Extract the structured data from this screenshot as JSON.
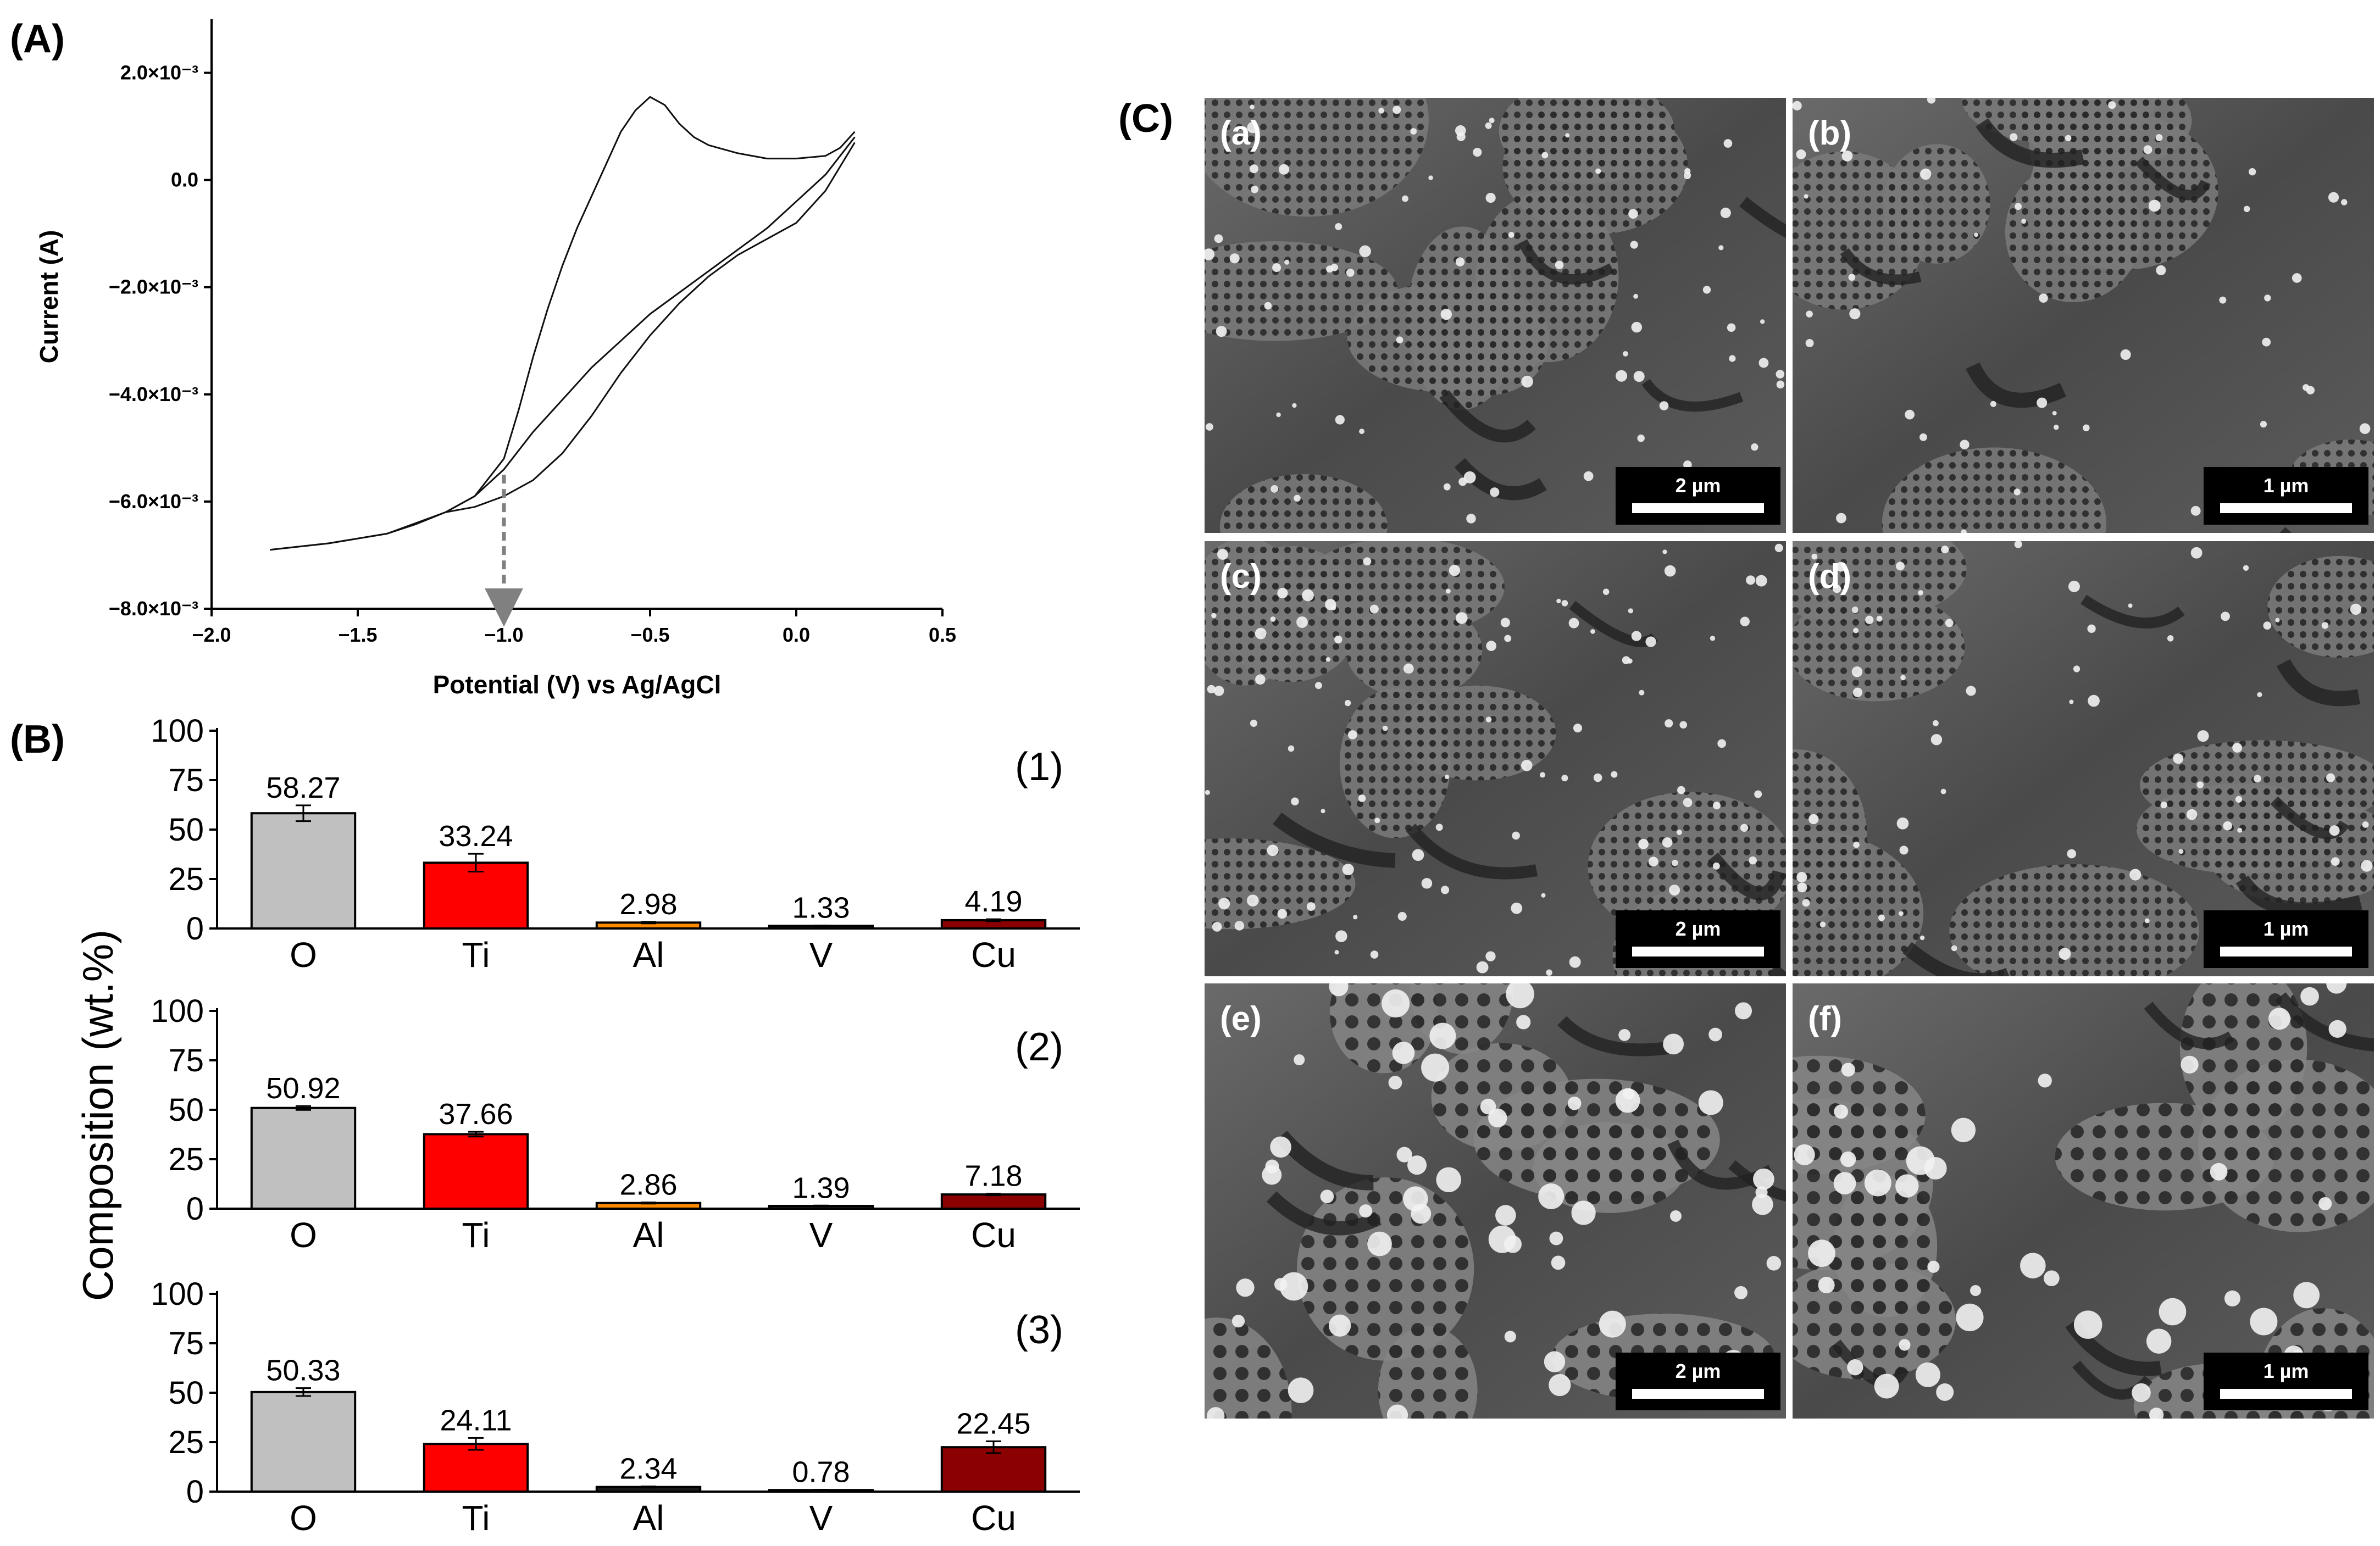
{
  "panels": {
    "a": "(A)",
    "b": "(B)",
    "c": "(C)"
  },
  "chart_data": [
    {
      "type": "line",
      "panel": "(A)",
      "xlabel": "Potential (V) vs Ag/AgCl",
      "ylabel": "Current (A)",
      "xlim": [
        -2.0,
        0.5
      ],
      "ylim": [
        -0.008,
        0.003
      ],
      "x_ticks": [
        "−2.0",
        "−1.5",
        "−1.0",
        "−0.5",
        "0.0",
        "0.5"
      ],
      "x_tick_values": [
        -2.0,
        -1.5,
        -1.0,
        -0.5,
        0.0,
        0.5
      ],
      "y_ticks": [
        "−8.0×10⁻³",
        "−6.0×10⁻³",
        "−4.0×10⁻³",
        "−2.0×10⁻³",
        "0.0",
        "2.0×10⁻³"
      ],
      "y_tick_values": [
        -0.008,
        -0.006,
        -0.004,
        -0.002,
        0.0,
        0.002
      ],
      "annotation": {
        "type": "dashed-arrow",
        "x": -1.0,
        "y_from": -0.0055,
        "y_to": -0.0081
      },
      "series": [
        {
          "x": [
            -1.8,
            -1.6,
            -1.4,
            -1.3,
            -1.2,
            -1.1,
            -1.0,
            -0.95,
            -0.9,
            -0.85,
            -0.8,
            -0.75,
            -0.7,
            -0.65,
            -0.6,
            -0.55,
            -0.5,
            -0.45,
            -0.4,
            -0.35,
            -0.3,
            -0.2,
            -0.1,
            0.0,
            0.1,
            0.15,
            0.2
          ],
          "y": [
            -0.0069,
            -0.00678,
            -0.0066,
            -0.00642,
            -0.0062,
            -0.0059,
            -0.0052,
            -0.0043,
            -0.0033,
            -0.0024,
            -0.0016,
            -0.0009,
            -0.0003,
            0.0003,
            0.0009,
            0.0013,
            0.00155,
            0.0014,
            0.00105,
            0.0008,
            0.00065,
            0.0005,
            0.0004,
            0.0004,
            0.00045,
            0.0006,
            0.0009
          ]
        },
        {
          "x": [
            0.2,
            0.1,
            0.0,
            -0.1,
            -0.2,
            -0.3,
            -0.4,
            -0.5,
            -0.6,
            -0.7,
            -0.8,
            -0.9,
            -1.0,
            -1.1,
            -1.2,
            -1.4,
            -1.6,
            -1.8
          ],
          "y": [
            0.0008,
            0.0001,
            -0.0004,
            -0.0009,
            -0.0013,
            -0.0017,
            -0.0021,
            -0.0025,
            -0.003,
            -0.0035,
            -0.0041,
            -0.0047,
            -0.0054,
            -0.0059,
            -0.0062,
            -0.0066,
            -0.00678,
            -0.0069
          ]
        },
        {
          "x": [
            0.2,
            0.1,
            0.0,
            -0.1,
            -0.2,
            -0.3,
            -0.4,
            -0.5,
            -0.6,
            -0.7,
            -0.8,
            -0.9,
            -1.0,
            -1.1,
            -1.2
          ],
          "y": [
            0.0007,
            -0.0002,
            -0.0008,
            -0.0011,
            -0.0014,
            -0.0018,
            -0.0023,
            -0.0029,
            -0.0036,
            -0.0044,
            -0.0051,
            -0.0056,
            -0.0059,
            -0.0061,
            -0.0062
          ]
        }
      ]
    },
    {
      "type": "bar",
      "panel": "(B)",
      "ylabel": "Composition (wt.%)",
      "ylim": [
        0,
        100
      ],
      "y_ticks": [
        "0",
        "25",
        "50",
        "75",
        "100"
      ],
      "y_tick_values": [
        0,
        25,
        50,
        75,
        100
      ],
      "categories": [
        "O",
        "Ti",
        "Al",
        "V",
        "Cu"
      ],
      "colors": [
        "#c0c0c0",
        "#ff0000",
        "#ff8c00",
        "#1a1a1a",
        "#8b0000"
      ],
      "subcharts": [
        {
          "tag": "(1)",
          "values": [
            58.27,
            33.24,
            2.98,
            1.33,
            4.19
          ],
          "labels": [
            "58.27",
            "33.24",
            "2.98",
            "1.33",
            "4.19"
          ],
          "errors": [
            4.0,
            4.5,
            0.4,
            0.2,
            0.5
          ],
          "colors": [
            "#c0c0c0",
            "#ff0000",
            "#ff8c00",
            "#1a1a1a",
            "#8b0000"
          ]
        },
        {
          "tag": "(2)",
          "values": [
            50.92,
            37.66,
            2.86,
            1.39,
            7.18
          ],
          "labels": [
            "50.92",
            "37.66",
            "2.86",
            "1.39",
            "7.18"
          ],
          "errors": [
            1.0,
            1.2,
            0.3,
            0.2,
            0.4
          ],
          "colors": [
            "#c0c0c0",
            "#ff0000",
            "#ff8c00",
            "#1a1a1a",
            "#8b0000"
          ]
        },
        {
          "tag": "(3)",
          "values": [
            50.33,
            24.11,
            2.34,
            0.78,
            22.45
          ],
          "labels": [
            "50.33",
            "24.11",
            "2.34",
            "0.78",
            "22.45"
          ],
          "errors": [
            2.0,
            3.0,
            0.3,
            0.2,
            3.0
          ],
          "colors": [
            "#c0c0c0",
            "#ff0000",
            "#1a1a1a",
            "#1a1a1a",
            "#8b0000"
          ]
        }
      ]
    }
  ],
  "sem": {
    "images": [
      {
        "label": "(a)",
        "scale": "2 µm",
        "density": 0.55,
        "particle_size": "small"
      },
      {
        "label": "(b)",
        "scale": "1 µm",
        "density": 0.35,
        "particle_size": "small"
      },
      {
        "label": "(c)",
        "scale": "2 µm",
        "density": 0.75,
        "particle_size": "small"
      },
      {
        "label": "(d)",
        "scale": "1 µm",
        "density": 0.5,
        "particle_size": "small"
      },
      {
        "label": "(e)",
        "scale": "2 µm",
        "density": 0.8,
        "particle_size": "large"
      },
      {
        "label": "(f)",
        "scale": "1 µm",
        "density": 0.6,
        "particle_size": "large"
      }
    ]
  }
}
